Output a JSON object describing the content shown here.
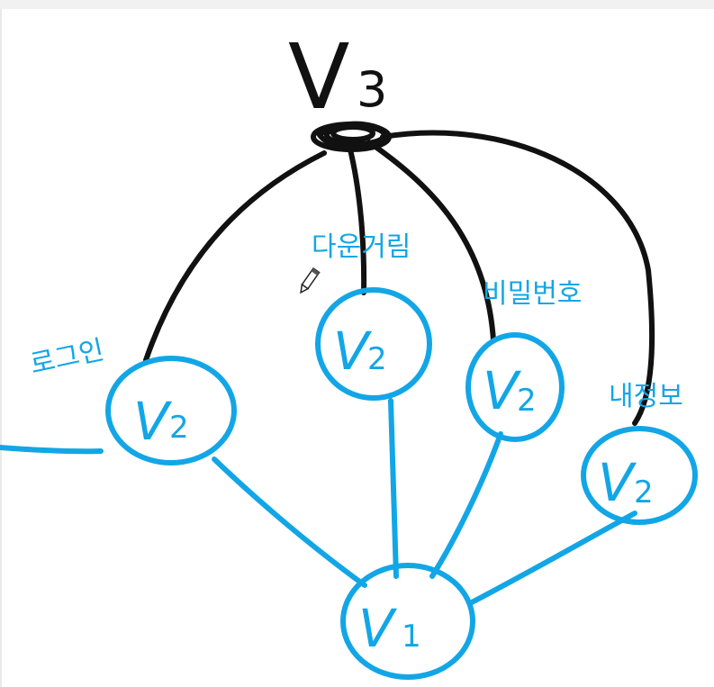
{
  "root": {
    "letter": "V",
    "index": "3"
  },
  "nodes": [
    {
      "id": "login",
      "letter": "V",
      "index": "2",
      "label": "로그인"
    },
    {
      "id": "download",
      "letter": "V",
      "index": "2",
      "label": "다운거림"
    },
    {
      "id": "password",
      "letter": "V",
      "index": "2",
      "label": "비밀번호"
    },
    {
      "id": "myinfo",
      "letter": "V",
      "index": "2",
      "label": "내정보"
    }
  ],
  "base": {
    "letter": "V",
    "index": "1"
  },
  "colors": {
    "blue_ink": "#12a6e6",
    "black_ink": "#111111",
    "background": "#ffffff"
  }
}
